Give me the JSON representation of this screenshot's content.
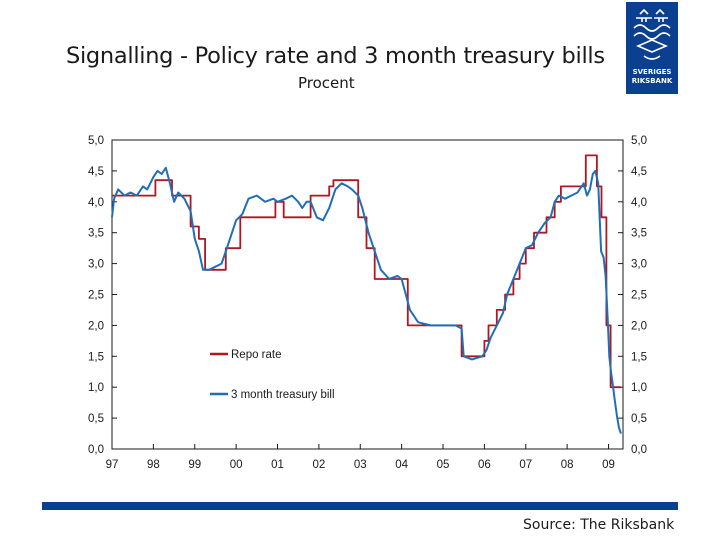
{
  "header": {
    "title": "Signalling - Policy rate and 3 month treasury bills",
    "subtitle": "Procent"
  },
  "logo": {
    "line1": "SVERIGES",
    "line2": "RIKSBANK"
  },
  "footer": {
    "source": "Source: The Riksbank"
  },
  "colors": {
    "brand": "#0b3f8f",
    "repo": "#b0171f",
    "tbill": "#1f6fb8"
  },
  "chart_data": {
    "type": "line",
    "title": "Signalling - Policy rate and 3 month treasury bills",
    "ylabel": "Procent",
    "xlabel": "",
    "ylim": [
      0,
      5
    ],
    "xlim": [
      1997,
      2009.35
    ],
    "y_ticks": [
      "0,0",
      "0,5",
      "1,0",
      "1,5",
      "2,0",
      "2,5",
      "3,0",
      "3,5",
      "4,0",
      "4,5",
      "5,0"
    ],
    "x_ticks": [
      "97",
      "98",
      "99",
      "00",
      "01",
      "02",
      "03",
      "04",
      "05",
      "06",
      "07",
      "08",
      "09"
    ],
    "grid": false,
    "legend_position": "center",
    "series": [
      {
        "name": "Repo rate",
        "color": "#b0171f",
        "step": true,
        "x": [
          1997.0,
          1998.05,
          1998.45,
          1998.9,
          1999.1,
          1999.25,
          1999.75,
          2000.1,
          2000.95,
          2001.15,
          2001.8,
          2002.25,
          2002.35,
          2002.95,
          2003.15,
          2003.35,
          2003.5,
          2004.15,
          2004.35,
          2005.45,
          2006.0,
          2006.1,
          2006.3,
          2006.5,
          2006.7,
          2006.85,
          2007.0,
          2007.2,
          2007.5,
          2007.7,
          2007.85,
          2008.1,
          2008.45,
          2008.72,
          2008.83,
          2008.95,
          2009.05,
          2009.3
        ],
        "y": [
          4.1,
          4.35,
          4.1,
          3.6,
          3.4,
          2.9,
          3.25,
          3.75,
          4.0,
          3.75,
          4.1,
          4.25,
          4.35,
          3.75,
          3.25,
          2.75,
          2.75,
          2.0,
          2.0,
          1.5,
          1.75,
          2.0,
          2.25,
          2.5,
          2.75,
          3.0,
          3.25,
          3.5,
          3.75,
          4.0,
          4.25,
          4.25,
          4.75,
          4.25,
          3.75,
          2.0,
          1.0,
          1.0
        ]
      },
      {
        "name": "3 month treasury bill",
        "color": "#1f6fb8",
        "step": false,
        "x": [
          1997.0,
          1997.05,
          1997.15,
          1997.3,
          1997.45,
          1997.6,
          1997.75,
          1997.85,
          1998.0,
          1998.1,
          1998.2,
          1998.3,
          1998.4,
          1998.5,
          1998.6,
          1998.75,
          1998.9,
          1999.0,
          1999.1,
          1999.2,
          1999.35,
          1999.5,
          1999.65,
          1999.8,
          1999.9,
          2000.0,
          2000.15,
          2000.3,
          2000.5,
          2000.7,
          2000.9,
          2001.0,
          2001.2,
          2001.35,
          2001.5,
          2001.6,
          2001.7,
          2001.8,
          2001.95,
          2002.1,
          2002.25,
          2002.4,
          2002.55,
          2002.7,
          2002.8,
          2002.95,
          2003.05,
          2003.2,
          2003.35,
          2003.5,
          2003.7,
          2003.9,
          2004.0,
          2004.1,
          2004.2,
          2004.4,
          2004.7,
          2005.0,
          2005.3,
          2005.45,
          2005.5,
          2005.7,
          2005.95,
          2006.05,
          2006.15,
          2006.3,
          2006.45,
          2006.55,
          2006.7,
          2006.85,
          2007.0,
          2007.15,
          2007.3,
          2007.45,
          2007.6,
          2007.7,
          2007.8,
          2007.95,
          2008.1,
          2008.25,
          2008.4,
          2008.48,
          2008.55,
          2008.62,
          2008.68,
          2008.75,
          2008.82,
          2008.88,
          2008.93,
          2008.98,
          2009.02,
          2009.06,
          2009.1,
          2009.15,
          2009.2,
          2009.25,
          2009.3
        ],
        "y": [
          3.75,
          4.05,
          4.2,
          4.1,
          4.15,
          4.1,
          4.25,
          4.2,
          4.4,
          4.5,
          4.45,
          4.55,
          4.3,
          4.0,
          4.15,
          4.05,
          3.85,
          3.4,
          3.2,
          2.9,
          2.9,
          2.95,
          3.0,
          3.3,
          3.5,
          3.7,
          3.8,
          4.05,
          4.1,
          4.0,
          4.05,
          4.0,
          4.05,
          4.1,
          4.0,
          3.9,
          4.0,
          4.0,
          3.75,
          3.7,
          3.9,
          4.2,
          4.3,
          4.25,
          4.2,
          4.1,
          3.9,
          3.5,
          3.2,
          2.9,
          2.75,
          2.8,
          2.75,
          2.5,
          2.25,
          2.05,
          2.0,
          2.0,
          2.0,
          1.95,
          1.5,
          1.45,
          1.5,
          1.6,
          1.8,
          2.0,
          2.2,
          2.5,
          2.75,
          3.0,
          3.25,
          3.3,
          3.5,
          3.65,
          3.75,
          4.0,
          4.1,
          4.05,
          4.1,
          4.15,
          4.3,
          4.1,
          4.2,
          4.45,
          4.5,
          4.3,
          3.2,
          3.1,
          2.8,
          2.1,
          1.5,
          1.25,
          1.05,
          0.8,
          0.55,
          0.35,
          0.25
        ]
      }
    ]
  }
}
